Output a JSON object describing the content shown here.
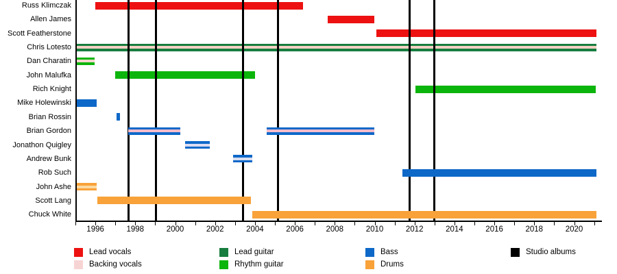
{
  "chart_data": {
    "type": "bar",
    "subtype": "band-membership-timeline",
    "title": "",
    "x_axis": {
      "start_year": 1995.0,
      "end_year": 2021.3,
      "tick_label_years": [
        1996,
        1998,
        2000,
        2002,
        2004,
        2006,
        2008,
        2010,
        2012,
        2014,
        2016,
        2018,
        2020
      ],
      "minor_tick_every_years": 1,
      "grid": "off"
    },
    "members": [
      {
        "name": "Russ Klimczak",
        "role": "Lead vocals",
        "color": "#ed1111",
        "stripe": null,
        "periods": [
          [
            1996.0,
            2006.4
          ]
        ]
      },
      {
        "name": "Allen James",
        "role": "Lead vocals",
        "color": "#ed1111",
        "stripe": null,
        "periods": [
          [
            2007.65,
            2010.0
          ]
        ]
      },
      {
        "name": "Scott Featherstone",
        "role": "Lead vocals",
        "color": "#ed1111",
        "stripe": null,
        "periods": [
          [
            2010.1,
            2021.1
          ]
        ]
      },
      {
        "name": "Chris Lotesto",
        "role": "Lead guitar, backing vocals",
        "color": "#177d3f",
        "stripe": "#f2d1c2",
        "periods": [
          [
            1995.05,
            2021.1
          ]
        ]
      },
      {
        "name": "Dan Charatin",
        "role": "Rhythm guitar, backing vocals",
        "color": "#0cb50c",
        "stripe": "#f4d6cc",
        "periods": [
          [
            1995.05,
            1995.95
          ]
        ]
      },
      {
        "name": "John Malufka",
        "role": "Rhythm guitar",
        "color": "#0cb50c",
        "stripe": null,
        "periods": [
          [
            1997.0,
            2004.0
          ]
        ]
      },
      {
        "name": "Rich Knight",
        "role": "Rhythm guitar",
        "color": "#0cb50c",
        "stripe": null,
        "periods": [
          [
            2012.05,
            2021.1
          ]
        ]
      },
      {
        "name": "Mike Holewinski",
        "role": "Bass",
        "color": "#0e68c8",
        "stripe": null,
        "periods": [
          [
            1995.05,
            1996.05
          ]
        ]
      },
      {
        "name": "Brian Rossin",
        "role": "Bass",
        "color": "#0e68c8",
        "stripe": null,
        "periods": [
          [
            1997.05,
            1997.25
          ]
        ]
      },
      {
        "name": "Brian Gordon",
        "role": "Bass, backing vocals",
        "color": "#0e68c8",
        "stripe": "#f4bccc",
        "periods": [
          [
            1997.65,
            2000.25
          ],
          [
            2004.6,
            2010.0
          ]
        ]
      },
      {
        "name": "Jonathon Quigley",
        "role": "Bass",
        "color": "#0e68c8",
        "stripe": "#dcdcf2",
        "periods": [
          [
            2000.5,
            2001.75
          ]
        ]
      },
      {
        "name": "Andrew Bunk",
        "role": "Bass",
        "color": "#0e68c8",
        "stripe": "#d8def0",
        "periods": [
          [
            2002.9,
            2003.85
          ]
        ]
      },
      {
        "name": "Rob Such",
        "role": "Bass",
        "color": "#0e68c8",
        "stripe": null,
        "periods": [
          [
            2011.4,
            2021.1
          ]
        ]
      },
      {
        "name": "John Ashe",
        "role": "Drums",
        "color": "#f8a239",
        "stripe": "#fbd9a0",
        "periods": [
          [
            1995.05,
            1996.05
          ]
        ]
      },
      {
        "name": "Scott Lang",
        "role": "Drums",
        "color": "#f8a239",
        "stripe": null,
        "periods": [
          [
            1996.1,
            2003.8
          ]
        ]
      },
      {
        "name": "Chuck White",
        "role": "Drums",
        "color": "#f8a239",
        "stripe": null,
        "periods": [
          [
            2003.85,
            2021.1
          ]
        ]
      }
    ],
    "lines_drawn_over_groups": [
      "Lead vocals",
      "Lead guitar",
      "Rhythm guitar"
    ],
    "studio_album_years": [
      1997.65,
      1999.05,
      2003.4,
      2005.15,
      2011.75,
      2013.0
    ],
    "legend": {
      "columns": [
        [
          {
            "label": "Lead vocals",
            "color": "#ed1111"
          },
          {
            "label": "Backing vocals",
            "color": "#f7d4d4"
          }
        ],
        [
          {
            "label": "Lead guitar",
            "color": "#177d3f"
          },
          {
            "label": "Rhythm guitar",
            "color": "#0cb50c"
          }
        ],
        [
          {
            "label": "Bass",
            "color": "#0e68c8"
          },
          {
            "label": "Drums",
            "color": "#f8a239"
          }
        ],
        [
          {
            "label": "Studio albums",
            "color": "#000000"
          }
        ]
      ]
    },
    "colors": {
      "axis": "#000000",
      "album_line": "#000000",
      "background": "#ffffff"
    }
  }
}
